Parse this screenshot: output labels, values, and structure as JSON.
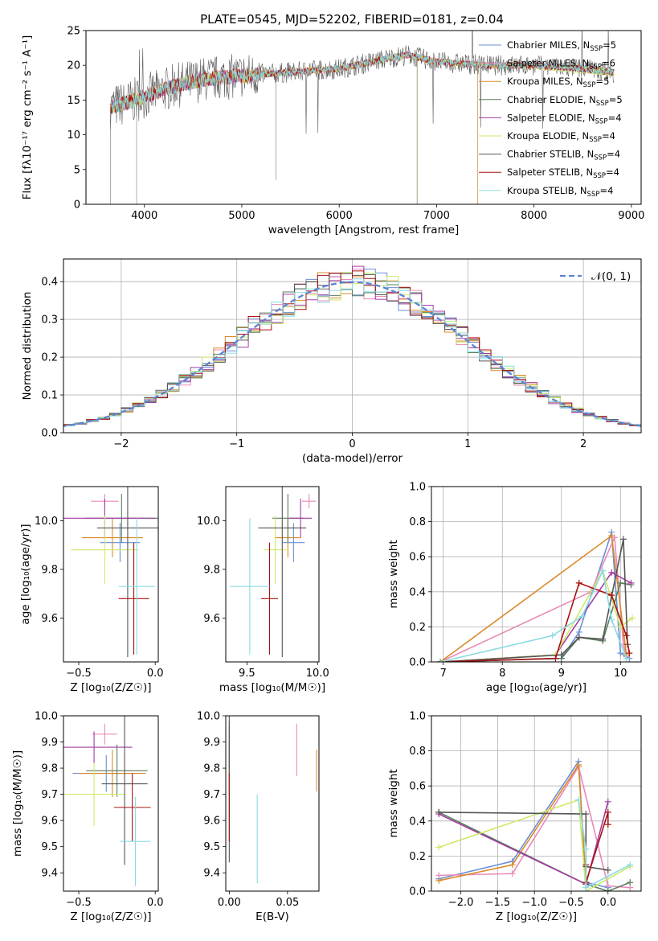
{
  "figure_title": "PLATE=0545, MJD=52202, FIBERID=0181, z=0.04",
  "colors": [
    "#6a8fd6",
    "#e98ab8",
    "#d98a2b",
    "#5b7e5c",
    "#a23ca3",
    "#cfe86a",
    "#555555",
    "#aa1111",
    "#8adbe0"
  ],
  "chart_data": [
    {
      "id": "spectrum",
      "type": "line",
      "title": "PLATE=0545, MJD=52202, FIBERID=0181, z=0.04",
      "xlabel": "wavelength [Angstrom, rest frame]",
      "ylabel": "Flux [fλ10⁻¹⁷ erg cm⁻² s⁻¹ A⁻¹]",
      "xlim": [
        3400,
        9100
      ],
      "ylim": [
        0,
        25
      ],
      "xticks": [
        "4000",
        "5000",
        "6000",
        "7000",
        "8000",
        "9000"
      ],
      "yticks": [
        "0",
        "5",
        "10",
        "15",
        "20",
        "25"
      ],
      "legend_position": "upper-right",
      "series": [
        {
          "name": "Chabrier MILES, N",
          "sub": "SSP",
          "suffix": "=5"
        },
        {
          "name": "Salpeter MILES, N",
          "sub": "SSP",
          "suffix": "=6"
        },
        {
          "name": "Kroupa MILES, N",
          "sub": "SSP",
          "suffix": "=5"
        },
        {
          "name": "Chabrier ELODIE, N",
          "sub": "SSP",
          "suffix": "=5"
        },
        {
          "name": "Salpeter ELODIE, N",
          "sub": "SSP",
          "suffix": "=4"
        },
        {
          "name": "Kroupa ELODIE, N",
          "sub": "SSP",
          "suffix": "=4"
        },
        {
          "name": "Chabrier STELIB, N",
          "sub": "SSP",
          "suffix": "=4"
        },
        {
          "name": "Salpeter STELIB, N",
          "sub": "SSP",
          "suffix": "=4"
        },
        {
          "name": "Kroupa STELIB, N",
          "sub": "SSP",
          "suffix": "=4"
        }
      ],
      "continuum": {
        "x": [
          3650,
          3800,
          4000,
          4300,
          4600,
          5000,
          5500,
          6000,
          6500,
          6700,
          7000,
          7500,
          8000,
          8500,
          8800
        ],
        "y": [
          14,
          14.5,
          15.5,
          17,
          18,
          18.5,
          19,
          19.5,
          21,
          21.5,
          20.5,
          20,
          20,
          19.5,
          19
        ]
      }
    },
    {
      "id": "residuals",
      "type": "histogram",
      "xlabel": "(data-model)/error",
      "ylabel": "Normed distribution",
      "xlim": [
        -2.5,
        2.5
      ],
      "ylim": [
        0,
        0.46
      ],
      "xticks": [
        "−2",
        "−1",
        "0",
        "1",
        "2"
      ],
      "yticks": [
        "0.0",
        "0.1",
        "0.2",
        "0.3",
        "0.4"
      ],
      "legend": "𝒩(0, 1)",
      "grid": true,
      "bin_width": 0.1
    },
    {
      "id": "age-vs-Z",
      "type": "errorbar",
      "xlabel": "Z [log₁₀(Z/Z☉)]",
      "ylabel": "age [log₁₀(age/yr)]",
      "xlim": [
        -0.6,
        0.02
      ],
      "ylim": [
        9.42,
        10.14
      ],
      "xticks": [
        "−0.5",
        "0.0"
      ],
      "yticks": [
        "9.6",
        "9.8",
        "10.0"
      ],
      "points": [
        {
          "x": -0.23,
          "y": 9.91,
          "ex": 0.13,
          "ey": 0.08
        },
        {
          "x": -0.33,
          "y": 10.08,
          "ex": 0.09,
          "ey": 0.03
        },
        {
          "x": -0.28,
          "y": 9.93,
          "ex": 0.2,
          "ey": 0.08
        },
        {
          "x": -0.22,
          "y": 10.01,
          "ex": 0.24,
          "ey": 0.1
        },
        {
          "x": -0.33,
          "y": 10.01,
          "ex": 0.33,
          "ey": 0.08
        },
        {
          "x": -0.33,
          "y": 9.88,
          "ex": 0.22,
          "ey": 0.14
        },
        {
          "x": -0.18,
          "y": 9.97,
          "ex": 0.2,
          "ey": 0.53
        },
        {
          "x": -0.14,
          "y": 9.68,
          "ex": 0.1,
          "ey": 0.23
        },
        {
          "x": -0.12,
          "y": 9.73,
          "ex": 0.12,
          "ey": 0.28
        }
      ]
    },
    {
      "id": "age-vs-mass",
      "type": "errorbar",
      "xlabel": "mass [log₁₀(M/M☉)]",
      "ylabel": "",
      "xlim": [
        9.35,
        10.01
      ],
      "ylim": [
        9.42,
        10.14
      ],
      "xticks": [
        "9.5",
        "10.0"
      ],
      "yticks": [
        "9.6",
        "9.8",
        "10.0"
      ],
      "points": [
        {
          "x": 9.83,
          "y": 9.91,
          "ex": 0.08,
          "ey": 0.08
        },
        {
          "x": 9.94,
          "y": 10.08,
          "ex": 0.05,
          "ey": 0.03
        },
        {
          "x": 9.79,
          "y": 9.93,
          "ex": 0.09,
          "ey": 0.08
        },
        {
          "x": 9.79,
          "y": 10.01,
          "ex": 0.11,
          "ey": 0.1
        },
        {
          "x": 9.88,
          "y": 10.01,
          "ex": 0.08,
          "ey": 0.08
        },
        {
          "x": 9.7,
          "y": 9.88,
          "ex": 0.08,
          "ey": 0.14
        },
        {
          "x": 9.75,
          "y": 9.97,
          "ex": 0.17,
          "ey": 0.53
        },
        {
          "x": 9.66,
          "y": 9.68,
          "ex": 0.06,
          "ey": 0.23
        },
        {
          "x": 9.52,
          "y": 9.73,
          "ex": 0.14,
          "ey": 0.28
        }
      ]
    },
    {
      "id": "weight-vs-age",
      "type": "line",
      "xlabel": "age [log₁₀(age/yr)]",
      "ylabel": "mass weight",
      "xlim": [
        6.8,
        10.35
      ],
      "ylim": [
        0,
        1.0
      ],
      "xticks": [
        "7",
        "8",
        "9",
        "10"
      ],
      "yticks": [
        "0.0",
        "0.2",
        "0.4",
        "0.6",
        "0.8",
        "1.0"
      ],
      "grid": true,
      "series": [
        {
          "x": [
            6.95,
            9.0,
            9.3,
            9.85,
            10.0,
            10.15
          ],
          "y": [
            0.0,
            0.02,
            0.17,
            0.74,
            0.05,
            0.02
          ]
        },
        {
          "x": [
            6.95,
            9.5,
            9.9,
            10.05,
            10.1
          ],
          "y": [
            0.0,
            0.4,
            0.71,
            0.1,
            0.03
          ]
        },
        {
          "x": [
            6.95,
            9.85,
            10.1
          ],
          "y": [
            0.0,
            0.72,
            0.04
          ]
        },
        {
          "x": [
            6.95,
            9.0,
            9.3,
            9.7,
            10.0,
            10.18
          ],
          "y": [
            0.0,
            0.02,
            0.14,
            0.12,
            0.45,
            0.44
          ]
        },
        {
          "x": [
            6.95,
            8.9,
            9.85,
            10.18
          ],
          "y": [
            0.0,
            0.04,
            0.51,
            0.45
          ]
        },
        {
          "x": [
            6.95,
            8.9,
            9.7,
            10.0,
            10.2
          ],
          "y": [
            0.0,
            0.04,
            0.52,
            0.2,
            0.25
          ]
        },
        {
          "x": [
            6.95,
            9.0,
            9.3,
            9.7,
            10.05,
            10.12
          ],
          "y": [
            0.0,
            0.04,
            0.14,
            0.13,
            0.7,
            0.1
          ]
        },
        {
          "x": [
            6.95,
            8.9,
            9.3,
            9.85,
            10.1,
            10.15
          ],
          "y": [
            0.0,
            0.02,
            0.45,
            0.38,
            0.15,
            0.05
          ]
        },
        {
          "x": [
            6.95,
            8.85,
            9.35,
            9.7,
            9.85,
            10.1
          ],
          "y": [
            0.0,
            0.15,
            0.26,
            0.52,
            0.24,
            0.02
          ]
        }
      ]
    },
    {
      "id": "mass-vs-Z",
      "type": "errorbar",
      "xlabel": "Z [log₁₀(Z/Z☉)]",
      "ylabel": "mass [log₁₀(M/M☉)]",
      "xlim": [
        -0.6,
        0.02
      ],
      "ylim": [
        9.33,
        10.0
      ],
      "xticks": [
        "−0.5",
        "0.0"
      ],
      "yticks": [
        "9.4",
        "9.5",
        "9.6",
        "9.7",
        "9.8",
        "9.9",
        "10.0"
      ],
      "points": [
        {
          "x": -0.32,
          "y": 9.78,
          "ex": 0.22,
          "ey": 0.07
        },
        {
          "x": -0.33,
          "y": 9.93,
          "ex": 0.08,
          "ey": 0.04
        },
        {
          "x": -0.28,
          "y": 9.78,
          "ex": 0.22,
          "ey": 0.09
        },
        {
          "x": -0.25,
          "y": 9.79,
          "ex": 0.2,
          "ey": 0.1
        },
        {
          "x": -0.4,
          "y": 9.88,
          "ex": 0.25,
          "ey": 0.06
        },
        {
          "x": -0.4,
          "y": 9.7,
          "ex": 0.2,
          "ey": 0.12
        },
        {
          "x": -0.2,
          "y": 9.74,
          "ex": 0.15,
          "ey": 0.31
        },
        {
          "x": -0.15,
          "y": 9.65,
          "ex": 0.12,
          "ey": 0.13
        },
        {
          "x": -0.13,
          "y": 9.52,
          "ex": 0.1,
          "ey": 0.17
        }
      ]
    },
    {
      "id": "mass-vs-EBV",
      "type": "errorbar",
      "xlabel": "E(B-V)",
      "ylabel": "",
      "xlim": [
        -0.003,
        0.077
      ],
      "ylim": [
        9.33,
        10.0
      ],
      "xticks": [
        "0.00",
        "0.05"
      ],
      "yticks": [
        "9.4",
        "9.5",
        "9.6",
        "9.7",
        "9.8",
        "9.9",
        "10.0"
      ],
      "points": [
        {
          "x": 0.0,
          "y": 9.78,
          "ex": 0.0,
          "ey": 0.18
        },
        {
          "x": 0.058,
          "y": 9.87,
          "ex": 0.0,
          "ey": 0.1
        },
        {
          "x": 0.075,
          "y": 9.79,
          "ex": 0.0,
          "ey": 0.08
        },
        {
          "x": 0.0,
          "y": 9.8,
          "ex": 0.0,
          "ey": 0.1
        },
        {
          "x": 0.0,
          "y": 9.88,
          "ex": 0.0,
          "ey": 0.1
        },
        {
          "x": 0.0,
          "y": 9.7,
          "ex": 0.0,
          "ey": 0.1
        },
        {
          "x": 0.0,
          "y": 9.74,
          "ex": 0.0,
          "ey": 0.3
        },
        {
          "x": 0.0,
          "y": 9.65,
          "ex": 0.0,
          "ey": 0.13
        },
        {
          "x": 0.024,
          "y": 9.53,
          "ex": 0.0,
          "ey": 0.17
        }
      ]
    },
    {
      "id": "weight-vs-Z",
      "type": "line",
      "xlabel": "Z [log₁₀(Z/Z☉)]",
      "ylabel": "mass weight",
      "xlim": [
        -2.4,
        0.45
      ],
      "ylim": [
        0,
        1.0
      ],
      "xticks": [
        "−2.0",
        "−1.5",
        "−1.0",
        "−0.5",
        "0.0"
      ],
      "yticks": [
        "0.0",
        "0.2",
        "0.4",
        "0.6",
        "0.8",
        "1.0"
      ],
      "grid": true,
      "series": [
        {
          "x": [
            -2.3,
            -1.3,
            -0.4,
            -0.3,
            0.0
          ],
          "y": [
            0.07,
            0.17,
            0.74,
            0.05,
            0.02
          ]
        },
        {
          "x": [
            -2.3,
            -1.3,
            -0.4,
            0.0,
            0.3
          ],
          "y": [
            0.09,
            0.1,
            0.71,
            0.03,
            0.02
          ]
        },
        {
          "x": [
            -2.3,
            -1.3,
            -0.4,
            -0.3
          ],
          "y": [
            0.06,
            0.15,
            0.72,
            0.04
          ]
        },
        {
          "x": [
            -2.3,
            -0.3,
            0.0,
            0.3
          ],
          "y": [
            0.45,
            0.04,
            0.0,
            0.05
          ]
        },
        {
          "x": [
            -2.3,
            -0.3,
            0.0
          ],
          "y": [
            0.44,
            0.04,
            0.51
          ]
        },
        {
          "x": [
            -2.3,
            -0.4,
            -0.3,
            0.3
          ],
          "y": [
            0.25,
            0.52,
            0.0,
            0.14
          ]
        },
        {
          "x": [
            -2.3,
            -0.3,
            -0.3,
            0.0
          ],
          "y": [
            0.45,
            0.44,
            0.14,
            0.12
          ]
        },
        {
          "x": [
            -0.3,
            -0.3,
            0.0,
            0.0
          ],
          "y": [
            0.15,
            0.05,
            0.45,
            0.38
          ]
        },
        {
          "x": [
            -0.4,
            -0.3,
            -0.3,
            0.3
          ],
          "y": [
            0.52,
            0.24,
            0.02,
            0.15
          ]
        }
      ]
    }
  ]
}
